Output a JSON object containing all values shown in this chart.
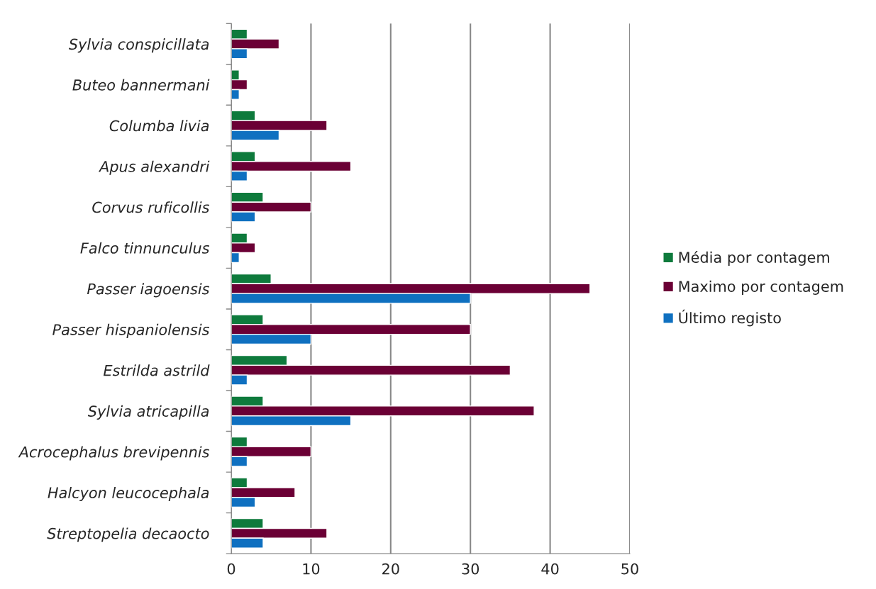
{
  "chart_data": {
    "type": "bar",
    "orientation": "horizontal",
    "categories": [
      "Sylvia conspicillata",
      "Buteo bannermani",
      "Columba livia",
      "Apus alexandri",
      "Corvus ruficollis",
      "Falco tinnunculus",
      "Passer iagoensis",
      "Passer hispaniolensis",
      "Estrilda astrild",
      "Sylvia atricapilla",
      "Acrocephalus brevipennis",
      "Halcyon leucocephala",
      "Streptopelia decaocto"
    ],
    "series": [
      {
        "name": "Média por contagem",
        "color": "#0e7a3c",
        "values": [
          2,
          1,
          3,
          3,
          4,
          2,
          5,
          4,
          7,
          4,
          2,
          2,
          4
        ]
      },
      {
        "name": "Maximo por contagem",
        "color": "#6b0035",
        "values": [
          6,
          2,
          12,
          15,
          10,
          3,
          45,
          30,
          35,
          38,
          10,
          8,
          12
        ]
      },
      {
        "name": "Último registo",
        "color": "#0f70c0",
        "values": [
          2,
          1,
          6,
          2,
          3,
          1,
          30,
          10,
          2,
          15,
          2,
          3,
          4
        ]
      }
    ],
    "xlim": [
      0,
      50
    ],
    "xticks": [
      0,
      10,
      20,
      30,
      40,
      50
    ],
    "grid": "x",
    "legend": "right"
  }
}
